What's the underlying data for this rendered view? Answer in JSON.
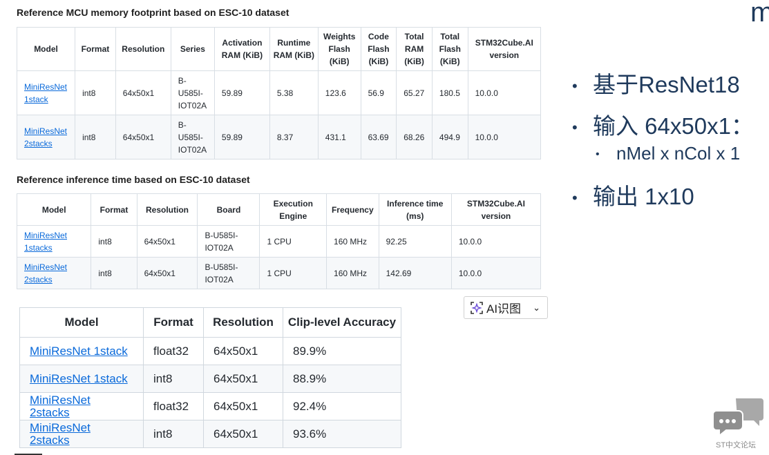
{
  "corner_letter": "m",
  "section1_title": "Reference MCU memory footprint based on ESC-10 dataset",
  "section2_title": "Reference inference time based on ESC-10 dataset",
  "table1": {
    "headers": [
      "Model",
      "Format",
      "Resolution",
      "Series",
      "Activation RAM (KiB)",
      "Runtime RAM (KiB)",
      "Weights Flash (KiB)",
      "Code Flash (KiB)",
      "Total RAM (KiB)",
      "Total Flash (KiB)",
      "STM32Cube.AI version"
    ],
    "rows": [
      [
        "MiniResNet 1stack",
        "int8",
        "64x50x1",
        "B-U585I-IOT02A",
        "59.89",
        "5.38",
        "123.6",
        "56.9",
        "65.27",
        "180.5",
        "10.0.0"
      ],
      [
        "MiniResNet 2stacks",
        "int8",
        "64x50x1",
        "B-U585I-IOT02A",
        "59.89",
        "8.37",
        "431.1",
        "63.69",
        "68.26",
        "494.9",
        "10.0.0"
      ]
    ]
  },
  "table2": {
    "headers": [
      "Model",
      "Format",
      "Resolution",
      "Board",
      "Execution Engine",
      "Frequency",
      "Inference time (ms)",
      "STM32Cube.AI version"
    ],
    "rows": [
      [
        "MiniResNet 1stacks",
        "int8",
        "64x50x1",
        "B-U585I-IOT02A",
        "1 CPU",
        "160 MHz",
        "92.25",
        "10.0.0"
      ],
      [
        "MiniResNet 2stacks",
        "int8",
        "64x50x1",
        "B-U585I-IOT02A",
        "1 CPU",
        "160 MHz",
        "142.69",
        "10.0.0"
      ]
    ]
  },
  "table3": {
    "headers": [
      "Model",
      "Format",
      "Resolution",
      "Clip-level Accuracy"
    ],
    "rows": [
      [
        "MiniResNet 1stack",
        "float32",
        "64x50x1",
        "89.9%"
      ],
      [
        "MiniResNet 1stack",
        "int8",
        "64x50x1",
        "88.9%"
      ],
      [
        "MiniResNet 2stacks",
        "float32",
        "64x50x1",
        "92.4%"
      ],
      [
        "MiniResNet 2stacks",
        "int8",
        "64x50x1",
        "93.6%"
      ]
    ]
  },
  "bullets": {
    "b1": "基于ResNet18",
    "b2": "输入 64x50x1：",
    "b2_sub": "nMel x nCol x 1",
    "b3": "输出 1x10"
  },
  "ai_button": {
    "label": "AI识图",
    "icon": "sparkle-scan-icon",
    "chevron": "chevron-down-icon"
  },
  "logo_text": "ST中文论坛",
  "colors": {
    "link": "#0969da",
    "bullet_text": "#1f3a5c",
    "logo_gray": "#9a9a9a"
  }
}
